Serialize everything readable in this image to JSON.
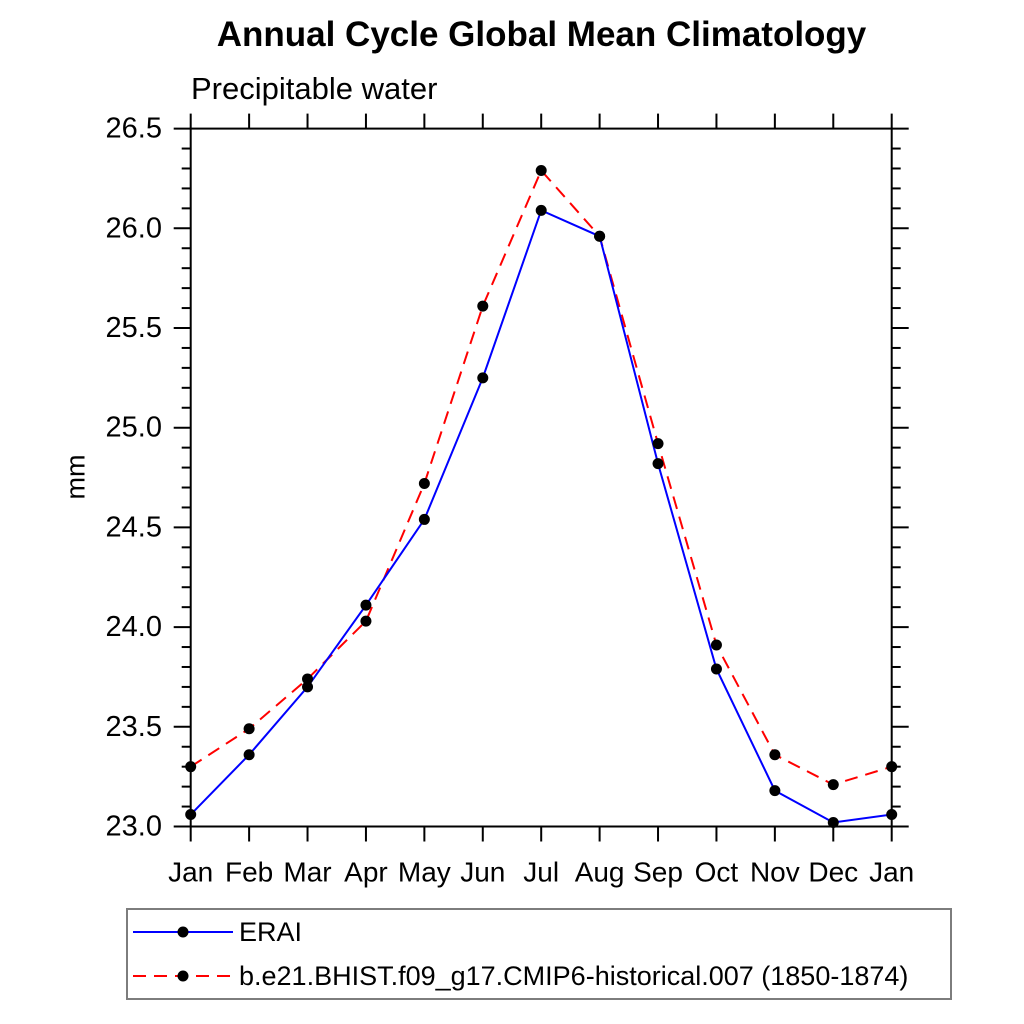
{
  "page": {
    "background_color": "#ffffff",
    "text_color": "#000000",
    "frame_color": "#000000",
    "legend_border_color": "#7d7d7d"
  },
  "chart_data": {
    "type": "line",
    "title": "Annual Cycle Global Mean Climatology",
    "subtitle": "Precipitable water",
    "xlabel": "",
    "ylabel": "mm",
    "categories": [
      "Jan",
      "Feb",
      "Mar",
      "Apr",
      "May",
      "Jun",
      "Jul",
      "Aug",
      "Sep",
      "Oct",
      "Nov",
      "Dec",
      "Jan"
    ],
    "series": [
      {
        "name": "ERAI",
        "color": "#0000ff",
        "line_style": "solid",
        "values": [
          23.06,
          23.36,
          23.7,
          24.11,
          24.54,
          25.25,
          26.09,
          25.96,
          24.82,
          23.79,
          23.18,
          23.02,
          23.06
        ]
      },
      {
        "name": "b.e21.BHIST.f09_g17.CMIP6-historical.007 (1850-1874)",
        "color": "#ff0000",
        "line_style": "dashed",
        "values": [
          23.3,
          23.49,
          23.74,
          24.03,
          24.72,
          25.61,
          26.29,
          25.96,
          24.92,
          23.91,
          23.36,
          23.21,
          23.3
        ]
      }
    ],
    "marker": "filled-circle",
    "marker_color": "#000000",
    "ylim": [
      23.0,
      26.5
    ],
    "ytick_major": 0.5,
    "ytick_minor": 0.1,
    "ytick_format_decimals": 1,
    "grid": false,
    "legend_position": "bottom-left-box"
  }
}
